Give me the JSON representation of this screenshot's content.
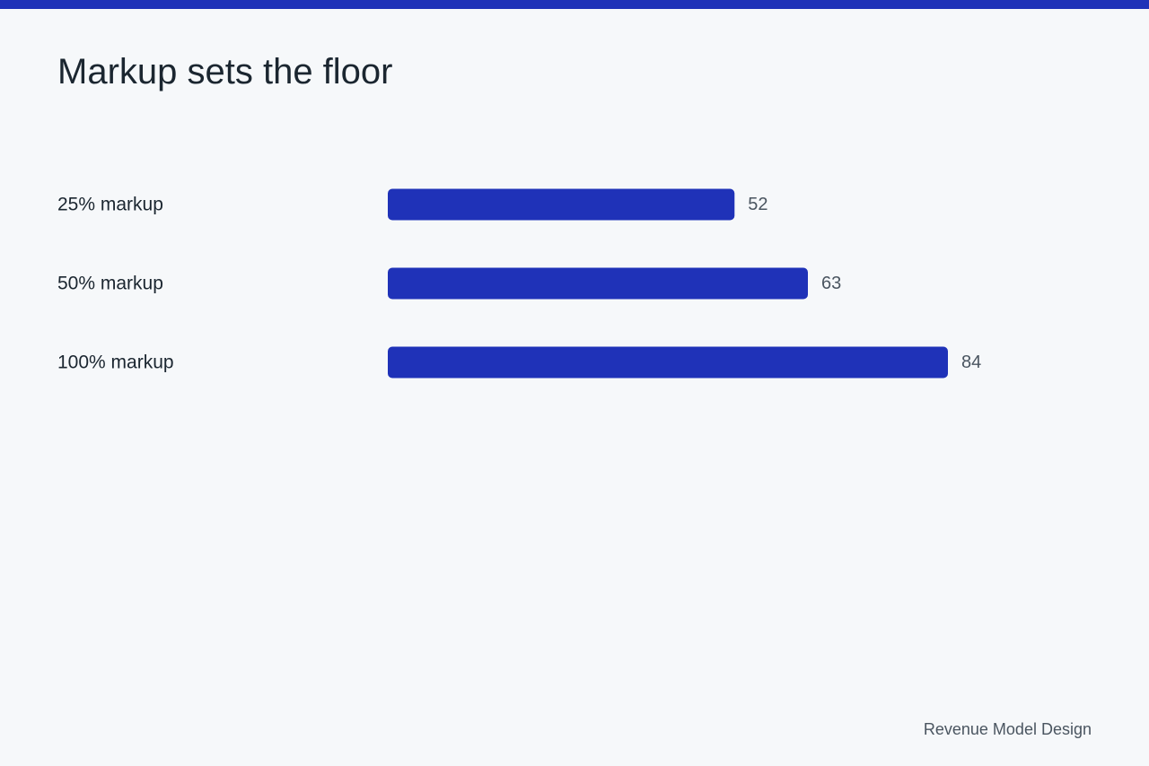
{
  "slide": {
    "title": "Markup sets the floor",
    "footer": "Revenue Model Design"
  },
  "colors": {
    "accent": "#1f32b8",
    "background": "#f6f8fa",
    "text": "#1b2630",
    "muted": "#4a5560"
  },
  "chart_data": {
    "type": "bar",
    "orientation": "horizontal",
    "categories": [
      "25% markup",
      "50% markup",
      "100% markup"
    ],
    "values": [
      52,
      63,
      84
    ],
    "title": "",
    "xlabel": "",
    "ylabel": "",
    "xlim": [
      0,
      84
    ],
    "grid": false,
    "data_labels": true
  }
}
